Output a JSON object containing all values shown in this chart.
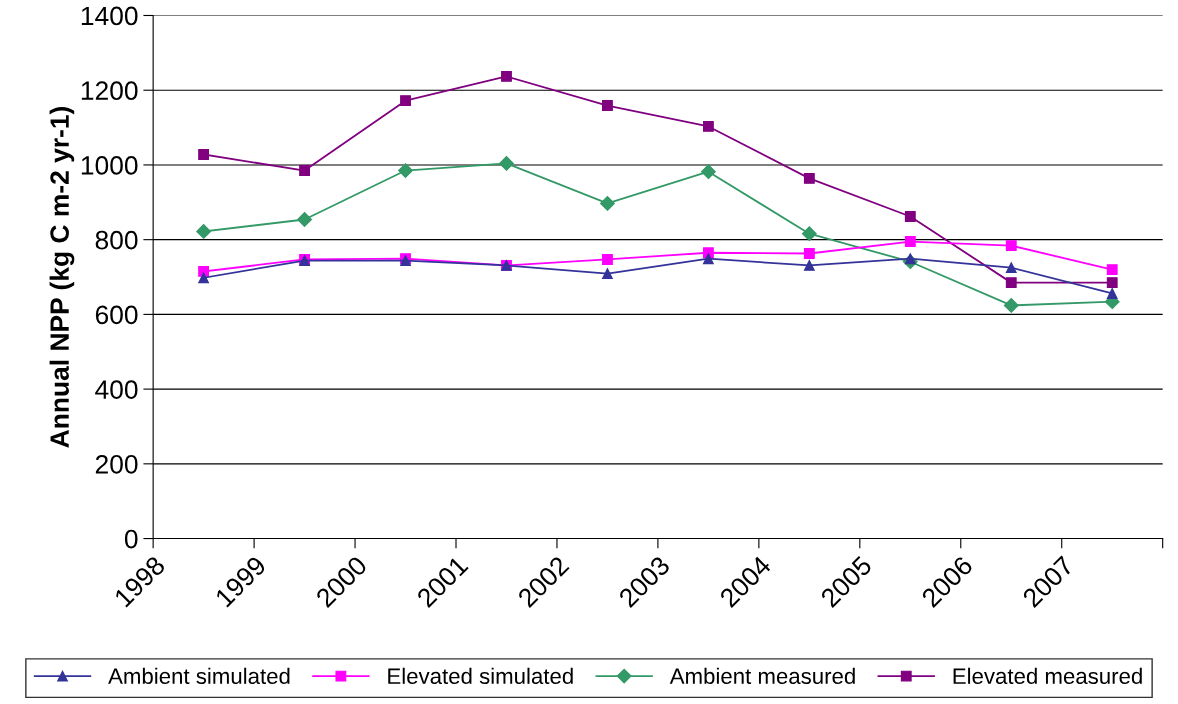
{
  "chart_data": {
    "type": "line",
    "ylabel": "Annual NPP (kg C m-2 yr-1)",
    "x": [
      1998.5,
      1999.5,
      2000.5,
      2001.5,
      2002.5,
      2003.5,
      2004.5,
      2005.5,
      2006.5,
      2007.5
    ],
    "xlim": [
      1998,
      2008
    ],
    "xticks": [
      1998,
      1999,
      2000,
      2001,
      2002,
      2003,
      2004,
      2005,
      2006,
      2007,
      {
        "value": 2008,
        "label": null
      }
    ],
    "ylim": [
      0,
      1400
    ],
    "yticks": [
      0,
      200,
      400,
      600,
      800,
      1000,
      1200,
      1400
    ],
    "grid": "y",
    "legend": "bottom",
    "line_style": "solid",
    "series": [
      {
        "name": "Ambient simulated",
        "color": "#333399",
        "marker": "triangle",
        "values": [
          698,
          744,
          744,
          731,
          709,
          749,
          731,
          749,
          725,
          656
        ]
      },
      {
        "name": "Elevated simulated",
        "color": "#ff00ff",
        "marker": "square",
        "values": [
          715,
          747,
          749,
          731,
          747,
          765,
          763,
          795,
          784,
          720
        ]
      },
      {
        "name": "Ambient measured",
        "color": "#339966",
        "marker": "diamond",
        "values": [
          822,
          854,
          985,
          1004,
          897,
          982,
          816,
          741,
          624,
          634
        ]
      },
      {
        "name": "Elevated measured",
        "color": "#800080",
        "marker": "square",
        "values": [
          1028,
          985,
          1172,
          1237,
          1159,
          1103,
          964,
          862,
          685,
          685
        ]
      }
    ]
  }
}
